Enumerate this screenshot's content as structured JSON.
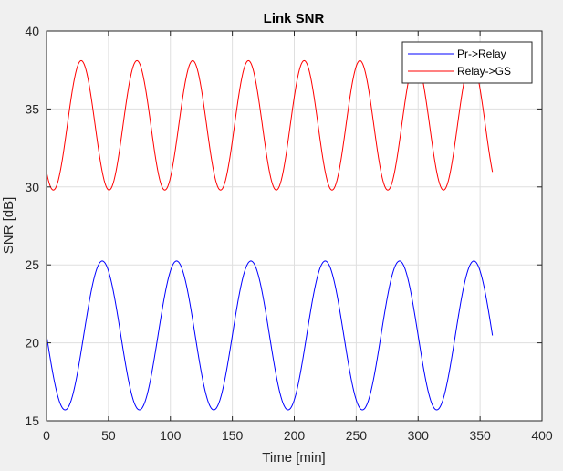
{
  "chart_data": {
    "type": "line",
    "title": "Link SNR",
    "xlabel": "Time [min]",
    "ylabel": "SNR [dB]",
    "xlim": [
      0,
      400
    ],
    "ylim": [
      15,
      40
    ],
    "xticks": [
      0,
      50,
      100,
      150,
      200,
      250,
      300,
      350,
      400
    ],
    "yticks": [
      15,
      20,
      25,
      30,
      35,
      40
    ],
    "grid": true,
    "legend_position": "top-right",
    "series": [
      {
        "name": "Pr->Relay",
        "color": "#0000ff",
        "model": {
          "min": 15.7,
          "max": 25.25,
          "period_min": 60,
          "first_peak_min": 45,
          "x_start": 0,
          "x_end": 360
        }
      },
      {
        "name": "Relay->GS",
        "color": "#ff0000",
        "model": {
          "min": 29.8,
          "max": 38.1,
          "period_min": 45,
          "first_peak_min": 28,
          "x_start": 0,
          "x_end": 360
        }
      }
    ]
  }
}
